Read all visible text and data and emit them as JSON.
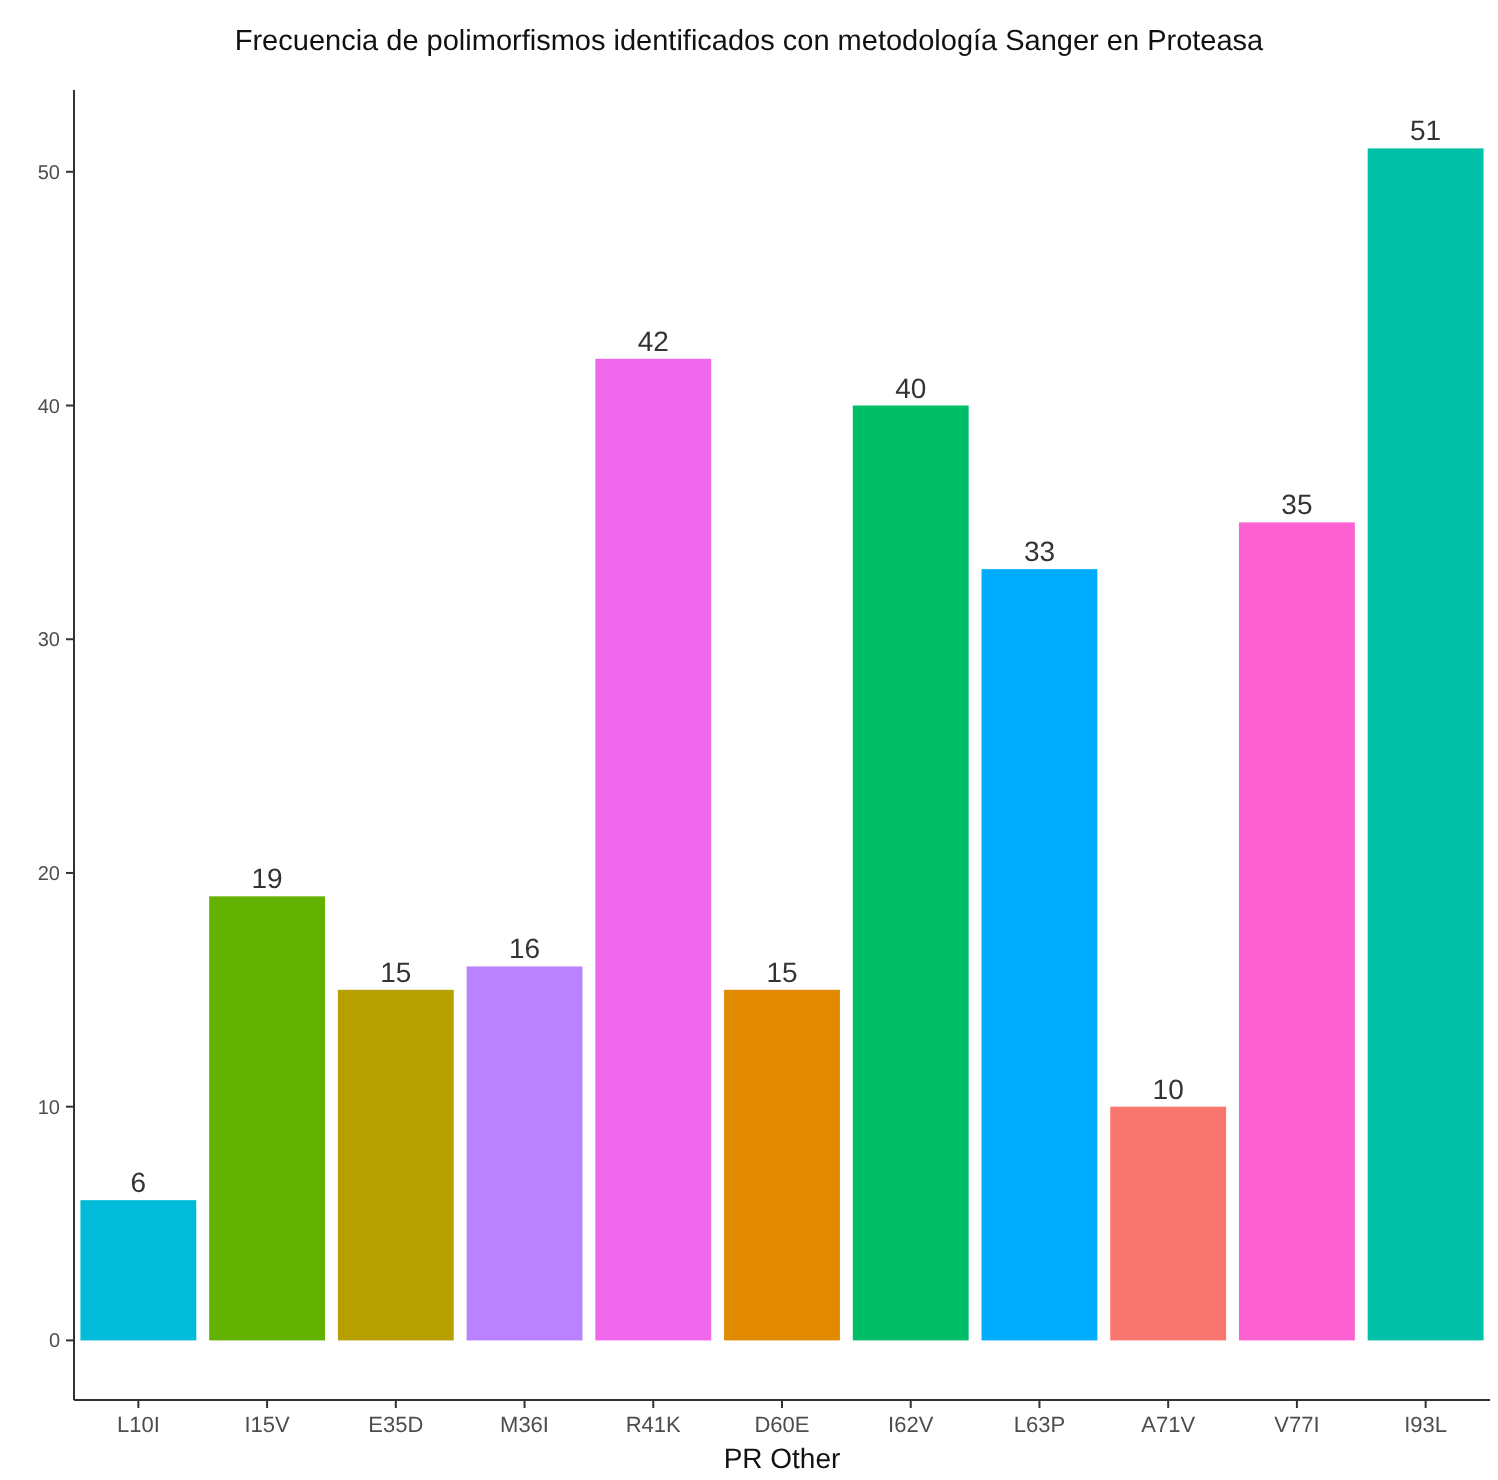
{
  "chart_data": {
    "type": "bar",
    "title": "Frecuencia de polimorfismos identificados con metodología Sanger en Proteasa",
    "xlabel": "PR Other",
    "categories": [
      "L10I",
      "I15V",
      "E35D",
      "M36I",
      "R41K",
      "D60E",
      "I62V",
      "L63P",
      "A71V",
      "V77I",
      "I93L"
    ],
    "values": [
      6,
      19,
      15,
      16,
      42,
      15,
      40,
      33,
      10,
      35,
      51
    ],
    "colors": [
      "#00bcd8",
      "#64b200",
      "#b5a000",
      "#b983ff",
      "#ef67eb",
      "#e18a00",
      "#00be67",
      "#00acfc",
      "#f8766d",
      "#fd61d1",
      "#00c1a7"
    ],
    "ylim": [
      -2.55,
      53.5
    ],
    "yticks": [
      0,
      10,
      20,
      30,
      40,
      50
    ],
    "grid": false,
    "data_labels": true
  }
}
